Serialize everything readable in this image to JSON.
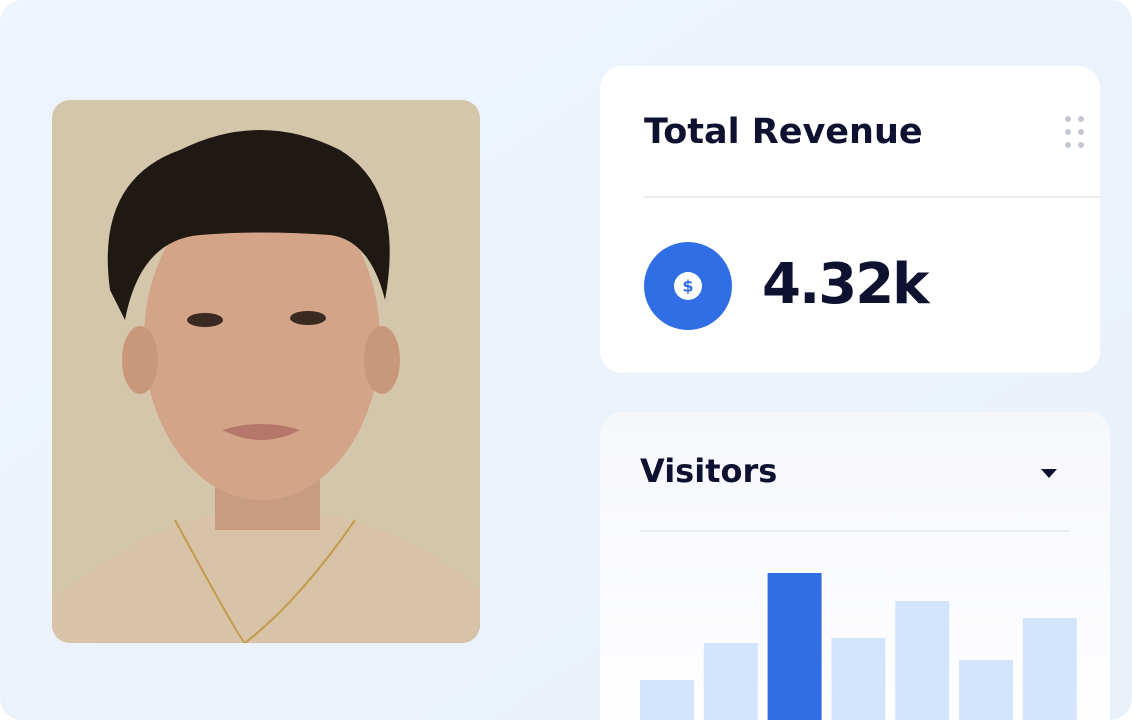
{
  "revenue_card": {
    "title": "Total Revenue",
    "icon": "$",
    "value": "4.32k"
  },
  "chart_data": {
    "type": "bar",
    "title": "Visitors",
    "values": [
      40,
      77,
      147,
      82,
      119,
      60,
      102
    ],
    "colors": [
      "#d3e5fc",
      "#d3e5fc",
      "#2f6ee5",
      "#d3e5fc",
      "#d3e5fc",
      "#d3e5fc",
      "#d3e5fc"
    ]
  }
}
